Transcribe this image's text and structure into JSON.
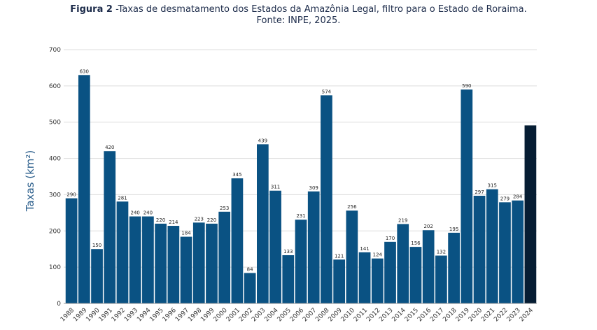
{
  "figure": {
    "label": "Figura 2",
    "title": "-Taxas de desmatamento dos Estados da Amazônia Legal, filtro para o Estado de Roraima.",
    "source": "Fonte: INPE, 2025."
  },
  "colors": {
    "bar": "#0a5283",
    "bar_highlight": "#061d33",
    "grid": "#dddddd"
  },
  "chart_data": {
    "type": "bar",
    "title": "",
    "xlabel": "",
    "ylabel": "Taxas (km²)",
    "ylim": [
      0,
      700
    ],
    "yticks": [
      0,
      100,
      200,
      300,
      400,
      500,
      600,
      700
    ],
    "grid": true,
    "categories": [
      "1988",
      "1989",
      "1990",
      "1991",
      "1992",
      "1993",
      "1994",
      "1995",
      "1996",
      "1997",
      "1998",
      "1999",
      "2000",
      "2001",
      "2002",
      "2003",
      "2004",
      "2005",
      "2006",
      "2007",
      "2008",
      "2009",
      "2010",
      "2011",
      "2012",
      "2013",
      "2014",
      "2015",
      "2016",
      "2017",
      "2018",
      "2019",
      "2020",
      "2021",
      "2022",
      "2023",
      "2024"
    ],
    "values": [
      290,
      630,
      150,
      420,
      281,
      240,
      240,
      220,
      214,
      184,
      223,
      220,
      253,
      345,
      84,
      439,
      311,
      133,
      231,
      309,
      574,
      121,
      256,
      141,
      124,
      170,
      219,
      156,
      202,
      132,
      195,
      590,
      297,
      315,
      279,
      284,
      491
    ],
    "data_labels": [
      "290",
      "630",
      "150",
      "420",
      "281",
      "240",
      "240",
      "220",
      "214",
      "184",
      "223",
      "220",
      "253",
      "345",
      "84",
      "439",
      "311",
      "133",
      "231",
      "309",
      "574",
      "121",
      "256",
      "141",
      "124",
      "170",
      "219",
      "156",
      "202",
      "132",
      "195",
      "590",
      "297",
      "315",
      "279",
      "284",
      ""
    ],
    "highlight_category": "2024"
  }
}
